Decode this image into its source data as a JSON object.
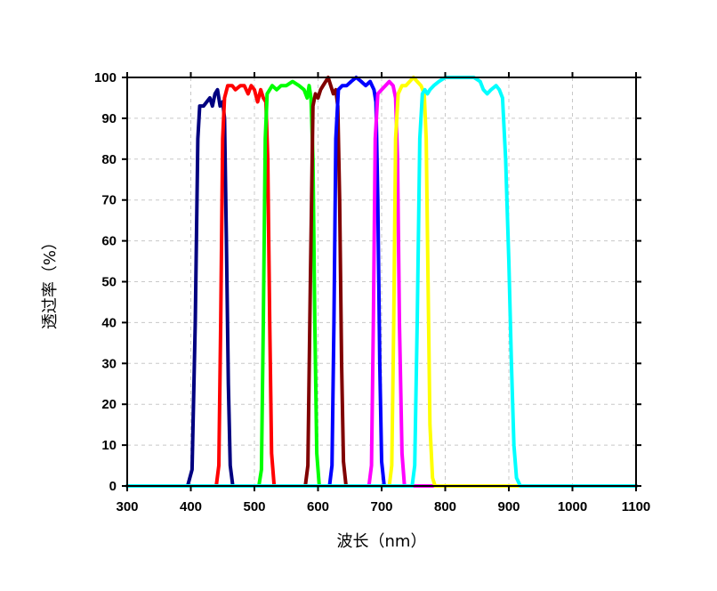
{
  "chart_data": {
    "type": "line",
    "xlabel": "波长（nm）",
    "ylabel": "透过率（%）",
    "xlim": [
      300,
      1100
    ],
    "ylim": [
      0,
      100
    ],
    "xticks": [
      300,
      400,
      500,
      600,
      700,
      800,
      900,
      1000,
      1100
    ],
    "yticks": [
      0,
      10,
      20,
      30,
      40,
      50,
      60,
      70,
      80,
      90,
      100
    ],
    "grid": true,
    "series": [
      {
        "color": "#000080",
        "points": [
          [
            300,
            0
          ],
          [
            395,
            0
          ],
          [
            402,
            4
          ],
          [
            407,
            40
          ],
          [
            411,
            85
          ],
          [
            414,
            93
          ],
          [
            420,
            93
          ],
          [
            425,
            94
          ],
          [
            430,
            95
          ],
          [
            434,
            93
          ],
          [
            438,
            96
          ],
          [
            442,
            97
          ],
          [
            446,
            93
          ],
          [
            450,
            94
          ],
          [
            453,
            90
          ],
          [
            456,
            60
          ],
          [
            459,
            25
          ],
          [
            462,
            5
          ],
          [
            466,
            0
          ],
          [
            1100,
            0
          ]
        ]
      },
      {
        "color": "#ff0000",
        "points": [
          [
            300,
            0
          ],
          [
            440,
            0
          ],
          [
            444,
            5
          ],
          [
            447,
            40
          ],
          [
            450,
            85
          ],
          [
            453,
            95
          ],
          [
            458,
            98
          ],
          [
            465,
            98
          ],
          [
            470,
            97
          ],
          [
            478,
            98
          ],
          [
            484,
            98
          ],
          [
            490,
            96
          ],
          [
            495,
            98
          ],
          [
            500,
            97
          ],
          [
            505,
            94
          ],
          [
            510,
            97
          ],
          [
            514,
            95
          ],
          [
            518,
            94
          ],
          [
            521,
            80
          ],
          [
            524,
            40
          ],
          [
            527,
            8
          ],
          [
            531,
            0
          ],
          [
            1100,
            0
          ]
        ]
      },
      {
        "color": "#00ff00",
        "points": [
          [
            300,
            0
          ],
          [
            507,
            0
          ],
          [
            511,
            4
          ],
          [
            514,
            40
          ],
          [
            517,
            85
          ],
          [
            520,
            96
          ],
          [
            528,
            98
          ],
          [
            535,
            97
          ],
          [
            542,
            98
          ],
          [
            550,
            98
          ],
          [
            560,
            99
          ],
          [
            570,
            98
          ],
          [
            578,
            97
          ],
          [
            583,
            95
          ],
          [
            586,
            98
          ],
          [
            589,
            95
          ],
          [
            592,
            80
          ],
          [
            595,
            40
          ],
          [
            598,
            8
          ],
          [
            602,
            0
          ],
          [
            1100,
            0
          ]
        ]
      },
      {
        "color": "#800000",
        "points": [
          [
            300,
            0
          ],
          [
            580,
            0
          ],
          [
            584,
            5
          ],
          [
            588,
            50
          ],
          [
            592,
            93
          ],
          [
            596,
            96
          ],
          [
            600,
            95
          ],
          [
            604,
            97
          ],
          [
            608,
            98
          ],
          [
            612,
            99
          ],
          [
            616,
            100
          ],
          [
            620,
            98
          ],
          [
            624,
            96
          ],
          [
            628,
            97
          ],
          [
            631,
            93
          ],
          [
            634,
            70
          ],
          [
            637,
            30
          ],
          [
            640,
            6
          ],
          [
            644,
            0
          ],
          [
            1100,
            0
          ]
        ]
      },
      {
        "color": "#0000ff",
        "points": [
          [
            300,
            0
          ],
          [
            618,
            0
          ],
          [
            622,
            5
          ],
          [
            625,
            40
          ],
          [
            628,
            85
          ],
          [
            632,
            97
          ],
          [
            638,
            98
          ],
          [
            645,
            98
          ],
          [
            652,
            99
          ],
          [
            660,
            100
          ],
          [
            668,
            99
          ],
          [
            675,
            98
          ],
          [
            682,
            99
          ],
          [
            688,
            97
          ],
          [
            691,
            94
          ],
          [
            694,
            70
          ],
          [
            697,
            30
          ],
          [
            700,
            6
          ],
          [
            704,
            0
          ],
          [
            1100,
            0
          ]
        ]
      },
      {
        "color": "#ff00ff",
        "points": [
          [
            300,
            0
          ],
          [
            680,
            0
          ],
          [
            684,
            5
          ],
          [
            687,
            40
          ],
          [
            690,
            85
          ],
          [
            694,
            96
          ],
          [
            700,
            97
          ],
          [
            706,
            98
          ],
          [
            712,
            99
          ],
          [
            718,
            98
          ],
          [
            722,
            95
          ],
          [
            725,
            80
          ],
          [
            728,
            40
          ],
          [
            732,
            8
          ],
          [
            736,
            0
          ],
          [
            1100,
            0
          ]
        ]
      },
      {
        "color": "#ffff00",
        "points": [
          [
            300,
            0
          ],
          [
            712,
            0
          ],
          [
            716,
            5
          ],
          [
            719,
            40
          ],
          [
            722,
            85
          ],
          [
            726,
            96
          ],
          [
            732,
            98
          ],
          [
            738,
            98
          ],
          [
            744,
            99
          ],
          [
            750,
            100
          ],
          [
            756,
            99
          ],
          [
            762,
            98
          ],
          [
            767,
            96
          ],
          [
            770,
            85
          ],
          [
            773,
            50
          ],
          [
            776,
            15
          ],
          [
            780,
            2
          ],
          [
            784,
            0
          ],
          [
            1100,
            0
          ]
        ]
      },
      {
        "color": "#00ffff",
        "points": [
          [
            300,
            0
          ],
          [
            748,
            0
          ],
          [
            752,
            5
          ],
          [
            756,
            40
          ],
          [
            760,
            85
          ],
          [
            764,
            96
          ],
          [
            768,
            97
          ],
          [
            772,
            96
          ],
          [
            776,
            97
          ],
          [
            782,
            98
          ],
          [
            790,
            99
          ],
          [
            800,
            100
          ],
          [
            815,
            100
          ],
          [
            830,
            100
          ],
          [
            845,
            100
          ],
          [
            855,
            99
          ],
          [
            860,
            97
          ],
          [
            866,
            96
          ],
          [
            872,
            97
          ],
          [
            880,
            98
          ],
          [
            885,
            97
          ],
          [
            890,
            95
          ],
          [
            895,
            80
          ],
          [
            900,
            55
          ],
          [
            904,
            30
          ],
          [
            908,
            10
          ],
          [
            912,
            2
          ],
          [
            918,
            0
          ],
          [
            1100,
            0
          ]
        ]
      }
    ]
  }
}
